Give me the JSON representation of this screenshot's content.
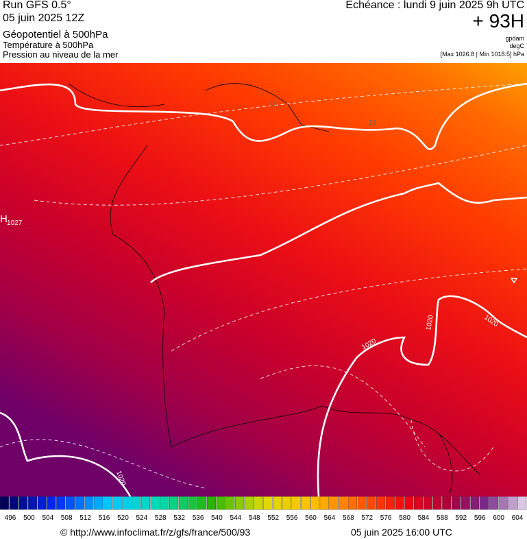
{
  "header": {
    "run": "Run GFS 0.5°",
    "run_date": "05 juin 2025 12Z",
    "field_1": "Géopotentiel à 500hPa",
    "field_2": "Température à 500hPa",
    "field_3": "Pression au niveau de la mer",
    "valid_time": "Echéance : lundi 9 juin 2025 9h UTC",
    "lead_time": "+ 93H",
    "unit_1": "gpdam",
    "unit_2": "degC",
    "pressure_range": "[Max 1026.8 | Min 1018.5] hPa"
  },
  "map": {
    "high_marker": "H",
    "high_value": "1027",
    "labels": [
      "16",
      "16",
      "1020",
      "1020",
      "1020",
      "1020"
    ]
  },
  "scale": {
    "labels": [
      496,
      500,
      504,
      508,
      512,
      516,
      520,
      524,
      528,
      532,
      536,
      540,
      544,
      548,
      552,
      556,
      560,
      564,
      568,
      572,
      576,
      580,
      584,
      588,
      592,
      596,
      600,
      604
    ]
  },
  "footer": {
    "source": "© http://www.infoclimat.fr/z/gfs/france/500/93",
    "issued": "05 juin 2025 16:00 UTC"
  }
}
